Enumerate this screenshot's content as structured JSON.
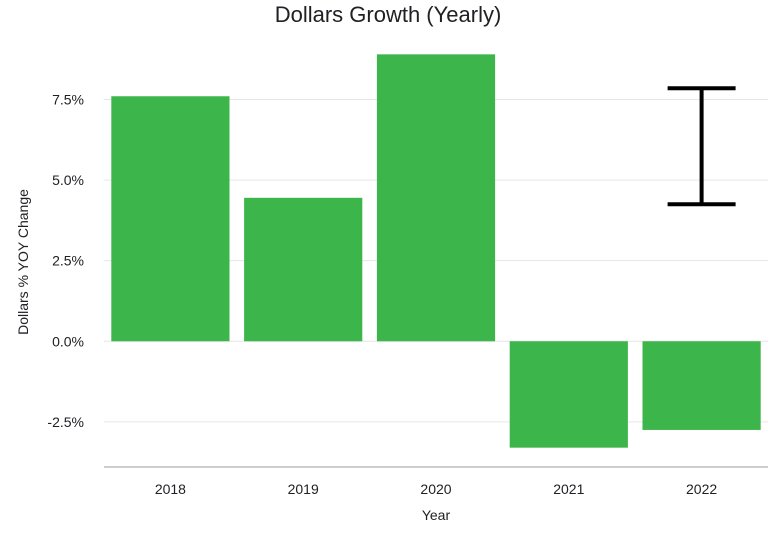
{
  "chart_data": {
    "type": "bar",
    "title": "Dollars Growth (Yearly)",
    "xlabel": "Year",
    "ylabel": "Dollars % YOY Change",
    "categories": [
      "2018",
      "2019",
      "2020",
      "2021",
      "2022"
    ],
    "values": [
      7.6,
      4.45,
      8.9,
      -3.3,
      -2.75
    ],
    "error_bar": {
      "category": "2022",
      "low": 4.25,
      "high": 7.85
    },
    "ylim": [
      -3.9,
      9.5
    ],
    "yticks": [
      -2.5,
      0.0,
      2.5,
      5.0,
      7.5
    ],
    "ytick_labels": [
      "-2.5%",
      "0.0%",
      "2.5%",
      "5.0%",
      "7.5%"
    ],
    "grid": true,
    "colors": {
      "bar": "#3cb54a",
      "error_bar": "#000000"
    }
  }
}
